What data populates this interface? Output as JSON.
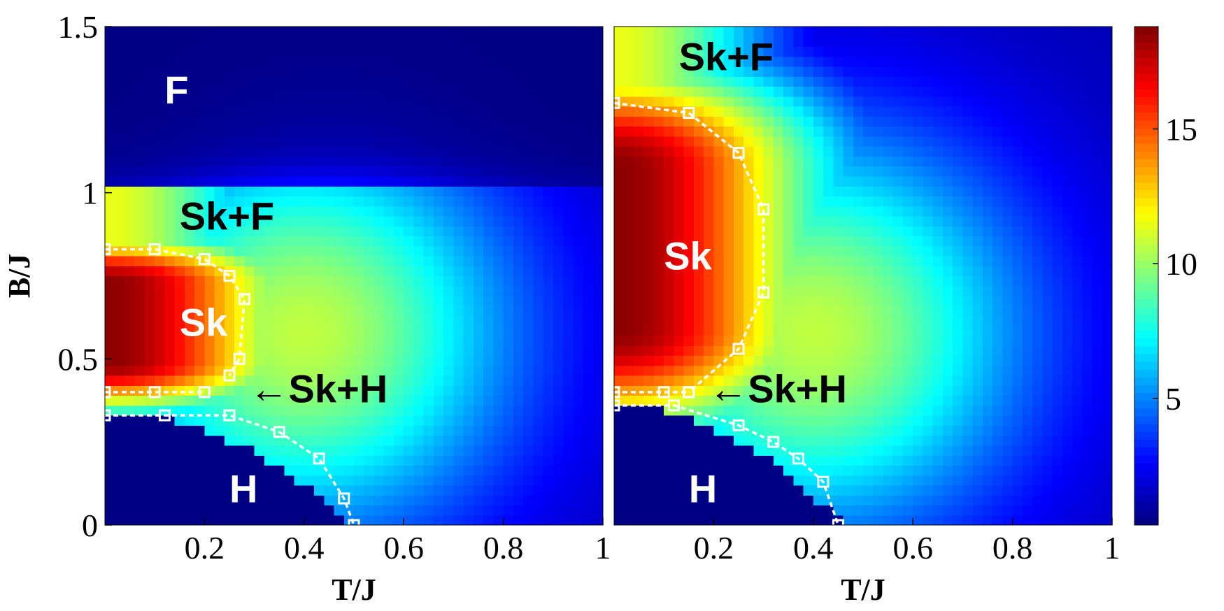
{
  "chart_data": [
    {
      "type": "heatmap",
      "title": "",
      "xlabel": "T/J",
      "ylabel": "B/J",
      "xlim": [
        0,
        1
      ],
      "ylim": [
        0,
        1.5
      ],
      "xticks": [
        "0.2",
        "0.4",
        "0.6",
        "0.8",
        "1"
      ],
      "yticks": [
        "0",
        "0.5",
        "1",
        "1.5"
      ],
      "regions": [
        {
          "label": "F",
          "x": 0.12,
          "y": 1.3,
          "color": "#ffffff"
        },
        {
          "label": "Sk+F",
          "x": 0.15,
          "y": 0.92,
          "color": "#000000"
        },
        {
          "label": "Sk",
          "x": 0.15,
          "y": 0.6,
          "color": "#ffffff"
        },
        {
          "label": "←Sk+H",
          "x": 0.29,
          "y": 0.4,
          "color": "#000000"
        },
        {
          "label": "H",
          "x": 0.25,
          "y": 0.1,
          "color": "#ffffff"
        }
      ],
      "heat": {
        "sk_lo": 0.4,
        "sk_hi": 0.82,
        "sk_tc": 0.28,
        "sk_peak": 18.6,
        "skf_lo": 0.82,
        "skf_hi": 1.03,
        "h_hi": 0.34,
        "h_tc": 0.5
      },
      "series": [
        {
          "values_x": [
            0.0,
            0.1,
            0.2,
            0.25,
            0.28,
            0.27,
            0.25
          ],
          "values_y": [
            0.83,
            0.83,
            0.8,
            0.75,
            0.68,
            0.5,
            0.45
          ]
        },
        {
          "values_x": [
            0.0,
            0.1,
            0.2
          ],
          "values_y": [
            0.4,
            0.4,
            0.4
          ]
        },
        {
          "values_x": [
            0.0,
            0.12,
            0.25,
            0.35,
            0.43,
            0.48,
            0.5
          ],
          "values_y": [
            0.33,
            0.33,
            0.33,
            0.28,
            0.2,
            0.08,
            0.0
          ]
        }
      ]
    },
    {
      "type": "heatmap",
      "title": "",
      "xlabel": "T/J",
      "ylabel": "",
      "xlim": [
        0,
        1
      ],
      "ylim": [
        0,
        1.5
      ],
      "xticks": [
        "0.2",
        "0.4",
        "0.6",
        "0.8",
        "1"
      ],
      "yticks": [],
      "regions": [
        {
          "label": "Sk+F",
          "x": 0.13,
          "y": 1.4,
          "color": "#000000"
        },
        {
          "label": "Sk",
          "x": 0.1,
          "y": 0.8,
          "color": "#ffffff"
        },
        {
          "label": "←Sk+H",
          "x": 0.19,
          "y": 0.4,
          "color": "#000000"
        },
        {
          "label": "H",
          "x": 0.15,
          "y": 0.1,
          "color": "#ffffff"
        }
      ],
      "heat": {
        "sk_lo": 0.4,
        "sk_hi": 1.27,
        "sk_tc": 0.3,
        "sk_peak": 18.6,
        "skf_lo": 1.27,
        "skf_hi": 1.5,
        "h_hi": 0.36,
        "h_tc": 0.46
      },
      "series": [
        {
          "values_x": [
            0.0,
            0.15,
            0.25,
            0.3,
            0.3,
            0.25,
            0.15
          ],
          "values_y": [
            1.27,
            1.24,
            1.12,
            0.95,
            0.7,
            0.53,
            0.4
          ]
        },
        {
          "values_x": [
            0.0,
            0.1,
            0.15
          ],
          "values_y": [
            0.4,
            0.4,
            0.4
          ]
        },
        {
          "values_x": [
            0.0,
            0.12,
            0.25,
            0.32,
            0.37,
            0.42,
            0.45
          ],
          "values_y": [
            0.36,
            0.36,
            0.3,
            0.25,
            0.2,
            0.13,
            0.0
          ]
        }
      ]
    }
  ],
  "colorbar": {
    "min": 0.3,
    "max": 18.8,
    "ticks": [
      {
        "value": 5,
        "label": "5"
      },
      {
        "value": 10,
        "label": "10"
      },
      {
        "value": 15,
        "label": "15"
      }
    ]
  }
}
